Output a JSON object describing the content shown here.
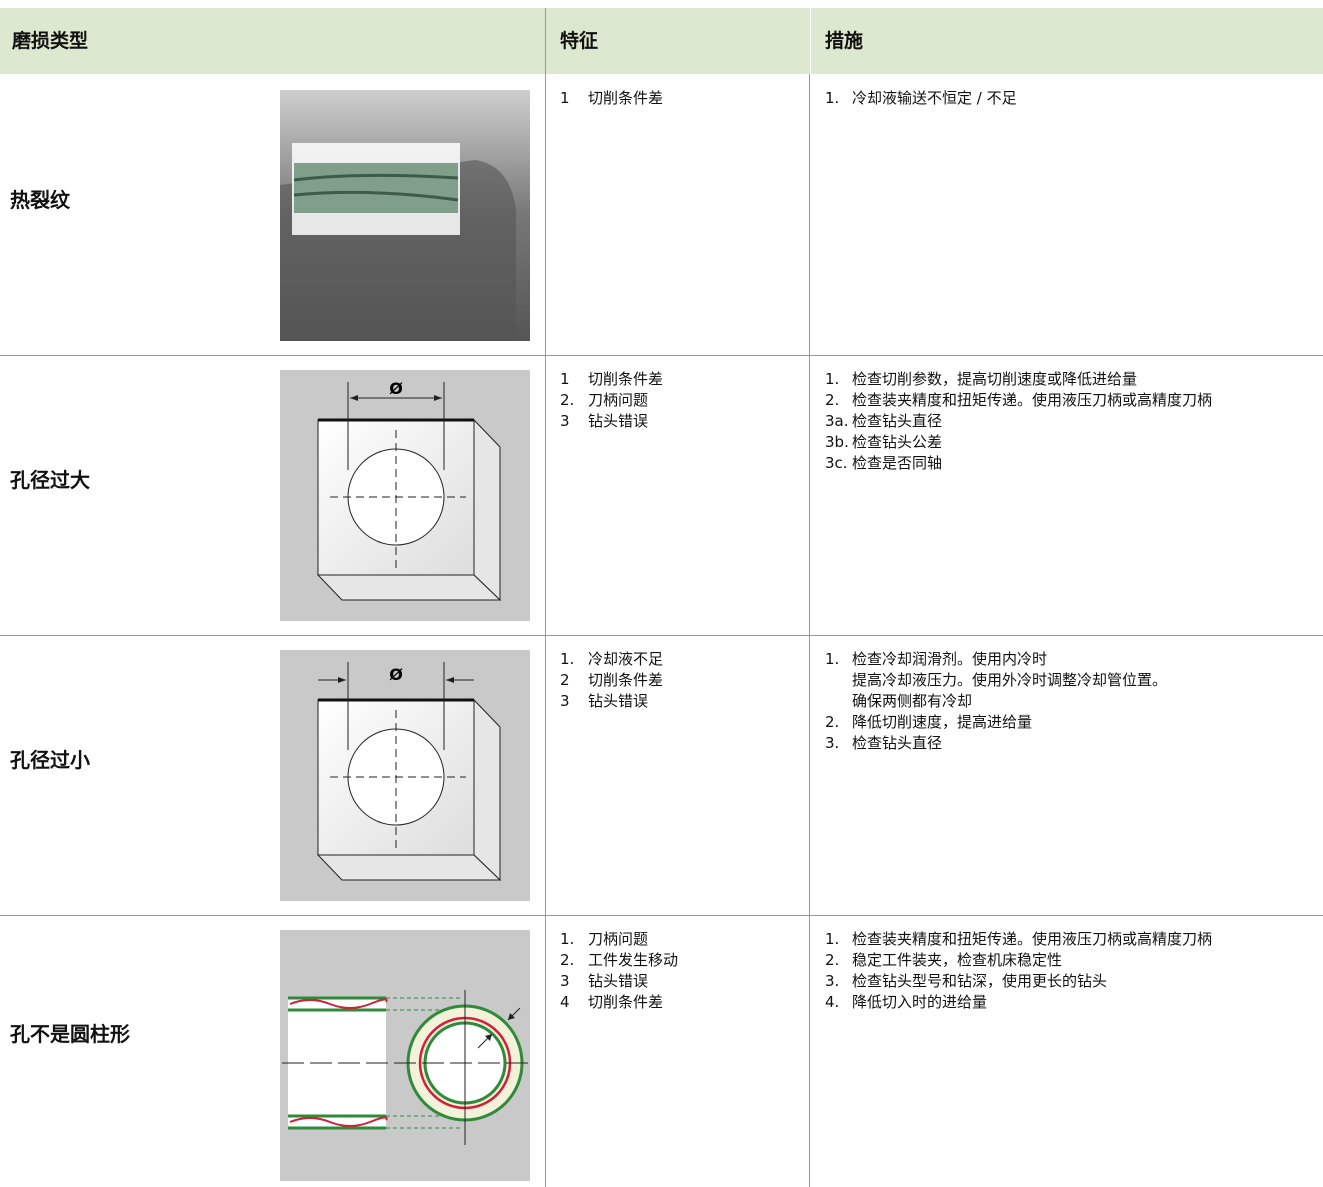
{
  "header": {
    "col1": "磨损类型",
    "col2": "特征",
    "col3": "措施"
  },
  "rows": [
    {
      "type": "热裂纹",
      "features": [
        {
          "n": "1",
          "text": "切削条件差"
        }
      ],
      "measures": [
        {
          "n": "1.",
          "lines": [
            "冷却液输送不恒定 / 不足"
          ]
        }
      ]
    },
    {
      "type": "孔径过大",
      "image_label": "Ø",
      "features": [
        {
          "n": "1",
          "text": "切削条件差"
        },
        {
          "n": "2.",
          "text": "刀柄问题"
        },
        {
          "n": "3",
          "text": "钻头错误"
        }
      ],
      "measures": [
        {
          "n": "1.",
          "lines": [
            "检查切削参数，提高切削速度或降低进给量"
          ]
        },
        {
          "n": "2.",
          "lines": [
            "检查装夹精度和扭矩传递。使用液压刀柄或高精度刀柄"
          ]
        },
        {
          "n": "3a.",
          "lines": [
            "检查钻头直径"
          ]
        },
        {
          "n": "3b.",
          "lines": [
            "检查钻头公差"
          ]
        },
        {
          "n": "3c.",
          "lines": [
            "检查是否同轴"
          ]
        }
      ]
    },
    {
      "type": "孔径过小",
      "image_label": "Ø",
      "features": [
        {
          "n": "1.",
          "text": "冷却液不足"
        },
        {
          "n": "2",
          "text": "切削条件差"
        },
        {
          "n": "3",
          "text": "钻头错误"
        }
      ],
      "measures": [
        {
          "n": "1.",
          "lines": [
            "检查冷却润滑剂。使用内冷时",
            "提高冷却液压力。使用外冷时调整冷却管位置。",
            "确保两侧都有冷却"
          ]
        },
        {
          "n": "2.",
          "lines": [
            "降低切削速度，提高进给量"
          ]
        },
        {
          "n": "3.",
          "lines": [
            "检查钻头直径"
          ]
        }
      ]
    },
    {
      "type": "孔不是圆柱形",
      "features": [
        {
          "n": "1.",
          "text": "刀柄问题"
        },
        {
          "n": "2.",
          "text": "工件发生移动"
        },
        {
          "n": "3",
          "text": "钻头错误"
        },
        {
          "n": "4",
          "text": "切削条件差"
        }
      ],
      "measures": [
        {
          "n": "1.",
          "lines": [
            "检查装夹精度和扭矩传递。使用液压刀柄或高精度刀柄"
          ]
        },
        {
          "n": "2.",
          "lines": [
            "稳定工件装夹，检查机床稳定性"
          ]
        },
        {
          "n": "3.",
          "lines": [
            "检查钻头型号和钻深，使用更长的钻头"
          ]
        },
        {
          "n": "4.",
          "lines": [
            "降低切入时的进给量"
          ]
        }
      ]
    }
  ]
}
